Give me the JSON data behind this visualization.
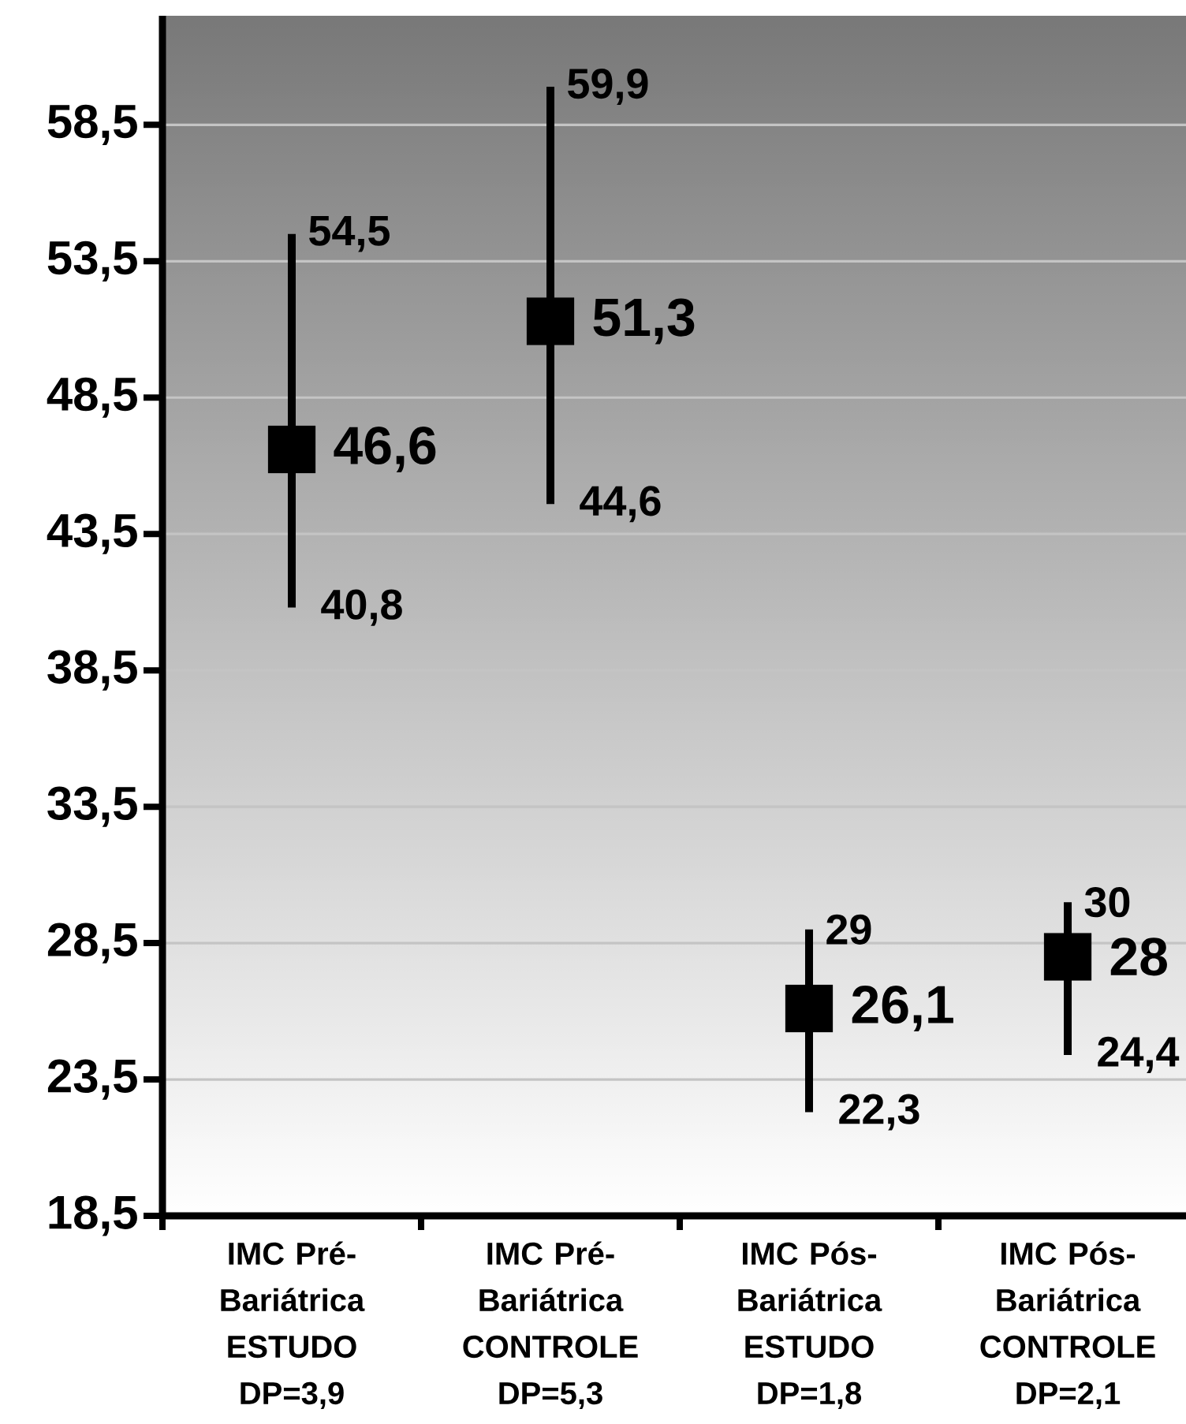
{
  "chart_data": {
    "type": "scatter",
    "categories": [
      "IMC Pré-Bariátrica ESTUDO DP=3,9",
      "IMC Pré-Bariátrica CONTROLE DP=5,3",
      "IMC Pós-Bariátrica ESTUDO DP=1,8",
      "IMC Pós-Bariátrica CONTROLE DP=2,1"
    ],
    "values": [
      46.6,
      51.3,
      26.1,
      28
    ],
    "errors": [
      [
        40.8,
        54.5
      ],
      [
        44.6,
        59.9
      ],
      [
        22.3,
        29
      ],
      [
        24.4,
        30
      ]
    ],
    "value_labels": [
      "46,6",
      "51,3",
      "26,1",
      "28"
    ],
    "color": "#000000",
    "marker": "square",
    "ylim": [
      18.5,
      62.5
    ],
    "yticks": [
      {
        "value": 18.5,
        "label": "18,5"
      },
      {
        "value": 23.5,
        "label": "23,5"
      },
      {
        "value": 28.5,
        "label": "28,5"
      },
      {
        "value": 33.5,
        "label": "33,5"
      },
      {
        "value": 38.5,
        "label": "38,5"
      },
      {
        "value": 43.5,
        "label": "43,5"
      },
      {
        "value": 48.5,
        "label": "48,5"
      },
      {
        "value": 53.5,
        "label": "53,5"
      },
      {
        "value": 58.5,
        "label": "58,5"
      }
    ],
    "grid": "y",
    "annotations": [
      {
        "text": "54,5",
        "x": "IMC Pré-Bariátrica ESTUDO DP=3,9",
        "y": 54.5
      },
      {
        "text": "40,8",
        "x": "IMC Pré-Bariátrica ESTUDO DP=3,9",
        "y": 40.8
      },
      {
        "text": "59,9",
        "x": "IMC Pré-Bariátrica CONTROLE DP=5,3",
        "y": 59.9
      },
      {
        "text": "44,6",
        "x": "IMC Pré-Bariátrica CONTROLE DP=5,3",
        "y": 44.6
      },
      {
        "text": "29",
        "x": "IMC Pós-Bariátrica ESTUDO DP=1,8",
        "y": 29
      },
      {
        "text": "22,3",
        "x": "IMC Pós-Bariátrica ESTUDO DP=1,8",
        "y": 22.3
      },
      {
        "text": "30",
        "x": "IMC Pós-Bariátrica CONTROLE DP=2,1",
        "y": 30
      },
      {
        "text": "24,4",
        "x": "IMC Pós-Bariátrica CONTROLE DP=2,1",
        "y": 24.4
      }
    ]
  }
}
